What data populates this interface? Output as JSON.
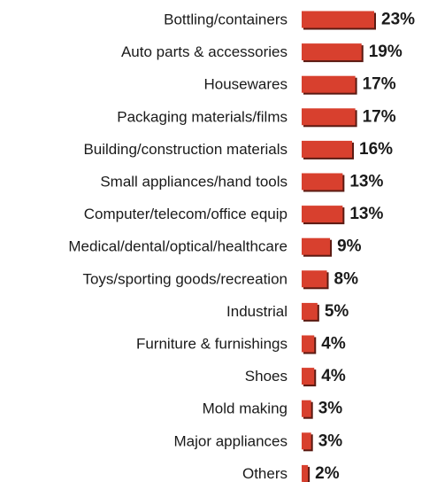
{
  "colors": {
    "bar_fill": "#d8402e",
    "bar_shadow": "#5a1a12",
    "background": "#ffffff",
    "text": "#1a1a1a"
  },
  "chart_data": {
    "type": "bar",
    "orientation": "horizontal",
    "title": "",
    "xlabel": "",
    "ylabel": "",
    "categories": [
      "Bottling/containers",
      "Auto parts & accessories",
      "Housewares",
      "Packaging materials/films",
      "Building/construction materials",
      "Small appliances/hand tools",
      "Computer/telecom/office equip",
      "Medical/dental/optical/healthcare",
      "Toys/sporting goods/recreation",
      "Industrial",
      "Furniture & furnishings",
      "Shoes",
      "Mold making",
      "Major appliances",
      "Others"
    ],
    "values": [
      23,
      19,
      17,
      17,
      16,
      13,
      13,
      9,
      8,
      5,
      4,
      4,
      3,
      3,
      2
    ],
    "value_labels": [
      "23%",
      "19%",
      "17%",
      "17%",
      "16%",
      "13%",
      "13%",
      "9%",
      "8%",
      "5%",
      "4%",
      "4%",
      "3%",
      "3%",
      "2%"
    ],
    "unit": "%",
    "xlim": [
      0,
      23
    ],
    "grid": false,
    "legend": "none"
  }
}
